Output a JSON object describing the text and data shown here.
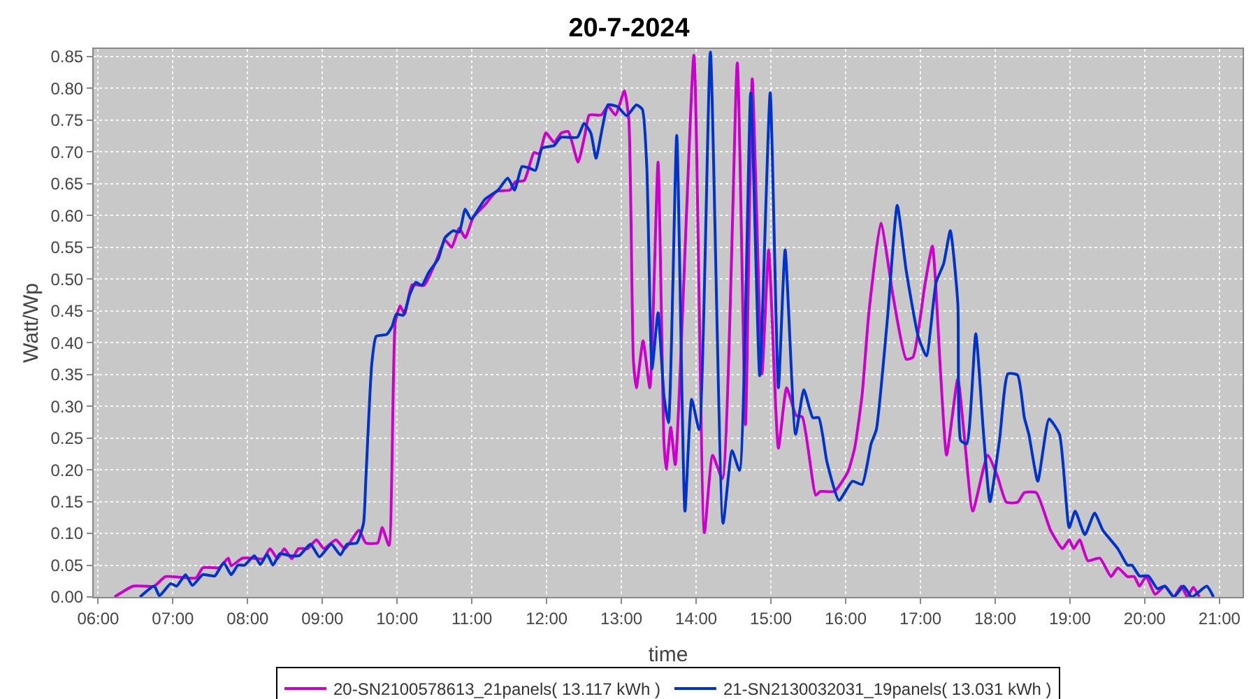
{
  "chart_data": {
    "type": "line",
    "title": "20-7-2024",
    "xlabel": "time",
    "ylabel": "Watt/Wp",
    "xlim": [
      5.94,
      21.31
    ],
    "xticks": [
      {
        "value": 6,
        "label": "06:00"
      },
      {
        "value": 7,
        "label": "07:00"
      },
      {
        "value": 8,
        "label": "08:00"
      },
      {
        "value": 9,
        "label": "09:00"
      },
      {
        "value": 10,
        "label": "10:00"
      },
      {
        "value": 11,
        "label": "11:00"
      },
      {
        "value": 12,
        "label": "12:00"
      },
      {
        "value": 13,
        "label": "13:00"
      },
      {
        "value": 14,
        "label": "14:00"
      },
      {
        "value": 15,
        "label": "15:00"
      },
      {
        "value": 16,
        "label": "16:00"
      },
      {
        "value": 17,
        "label": "17:00"
      },
      {
        "value": 18,
        "label": "18:00"
      },
      {
        "value": 19,
        "label": "19:00"
      },
      {
        "value": 20,
        "label": "20:00"
      },
      {
        "value": 21,
        "label": "21:00"
      }
    ],
    "ylim": [
      0,
      0.862
    ],
    "yticks": [
      {
        "value": 0,
        "label": "0.00"
      },
      0.05,
      {
        "value": 0.1,
        "label": "0.10"
      },
      0.15,
      {
        "value": 0.2,
        "label": "0.20"
      },
      0.25,
      {
        "value": 0.3,
        "label": "0.30"
      },
      0.35,
      {
        "value": 0.4,
        "label": "0.40"
      },
      0.45,
      {
        "value": 0.5,
        "label": "0.50"
      },
      0.55,
      {
        "value": 0.6,
        "label": "0.60"
      },
      0.65,
      {
        "value": 0.7,
        "label": "0.70"
      },
      0.75,
      {
        "value": 0.8,
        "label": "0.80"
      },
      0.85
    ],
    "grid": true,
    "legend": "bottom",
    "line_style": "solid",
    "series": [
      {
        "name": "20-SN2100578613_21panels( 13.117 kWh )",
        "color": "#cc00cc",
        "x": [
          6.22,
          6.47,
          6.75,
          6.9,
          7.31,
          7.4,
          7.62,
          7.74,
          7.78,
          7.93,
          8.06,
          8.21,
          8.3,
          8.4,
          8.49,
          8.59,
          8.68,
          8.8,
          8.92,
          9.02,
          9.18,
          9.3,
          9.49,
          9.58,
          9.74,
          9.8,
          9.89,
          9.975,
          10.04,
          10.1,
          10.2,
          10.36,
          10.52,
          10.64,
          10.73,
          10.83,
          10.91,
          11.02,
          11.17,
          11.33,
          11.51,
          11.58,
          11.7,
          11.83,
          11.9,
          11.99,
          12.1,
          12.2,
          12.29,
          12.42,
          12.51,
          12.57,
          12.73,
          12.82,
          12.92,
          13.04,
          13.1,
          13.16,
          13.2,
          13.29,
          13.38,
          13.49,
          13.57,
          13.6,
          13.66,
          13.72,
          13.97,
          14.11,
          14.22,
          14.35,
          14.55,
          14.66,
          14.75,
          14.88,
          14.97,
          15.1,
          15.21,
          15.34,
          15.42,
          15.6,
          15.66,
          15.85,
          16.03,
          16.12,
          16.22,
          16.31,
          16.47,
          16.64,
          16.81,
          16.9,
          17.06,
          17.16,
          17.27,
          17.35,
          17.5,
          17.59,
          17.7,
          17.9,
          18.03,
          18.15,
          18.3,
          18.39,
          18.55,
          18.74,
          18.9,
          18.99,
          19.05,
          19.13,
          19.24,
          19.4,
          19.55,
          19.64,
          19.77,
          19.86,
          19.93,
          20.02,
          20.14,
          20.27,
          20.39,
          20.49,
          20.57,
          20.65,
          20.73
        ],
        "values": [
          0,
          0.017,
          0.017,
          0.032,
          0.03,
          0.046,
          0.046,
          0.061,
          0.049,
          0.061,
          0.061,
          0.06,
          0.076,
          0.06,
          0.076,
          0.06,
          0.076,
          0.076,
          0.09,
          0.076,
          0.09,
          0.076,
          0.105,
          0.085,
          0.085,
          0.109,
          0.081,
          0.432,
          0.458,
          0.445,
          0.491,
          0.49,
          0.528,
          0.561,
          0.55,
          0.58,
          0.565,
          0.598,
          0.616,
          0.638,
          0.64,
          0.653,
          0.655,
          0.699,
          0.697,
          0.73,
          0.715,
          0.73,
          0.732,
          0.684,
          0.726,
          0.758,
          0.758,
          0.772,
          0.758,
          0.796,
          0.749,
          0.373,
          0.329,
          0.403,
          0.329,
          0.684,
          0.241,
          0.201,
          0.267,
          0.208,
          0.852,
          0.101,
          0.223,
          0.186,
          0.84,
          0.271,
          0.815,
          0.351,
          0.546,
          0.234,
          0.329,
          0.285,
          0.283,
          0.16,
          0.166,
          0.166,
          0.197,
          0.234,
          0.318,
          0.447,
          0.588,
          0.469,
          0.374,
          0.377,
          0.491,
          0.552,
          0.351,
          0.223,
          0.343,
          0.249,
          0.135,
          0.223,
          0.19,
          0.149,
          0.149,
          0.164,
          0.164,
          0.105,
          0.076,
          0.09,
          0.076,
          0.09,
          0.057,
          0.061,
          0.032,
          0.046,
          0.032,
          0.032,
          0.017,
          0.032,
          0.004,
          0.017,
          0,
          0.017,
          0,
          0.015,
          0
        ]
      },
      {
        "name": "21-SN2130032031_19panels( 13.031 kWh )",
        "color": "#0033cc",
        "x": [
          6.56,
          6.75,
          6.82,
          6.97,
          7.05,
          7.17,
          7.26,
          7.4,
          7.56,
          7.68,
          7.78,
          7.87,
          7.96,
          8.09,
          8.17,
          8.26,
          8.34,
          8.43,
          8.56,
          8.69,
          8.84,
          8.96,
          9.12,
          9.24,
          9.33,
          9.46,
          9.55,
          9.58,
          9.66,
          9.72,
          9.86,
          9.93,
          9.99,
          10.08,
          10.17,
          10.25,
          10.33,
          10.42,
          10.55,
          10.64,
          10.75,
          10.83,
          10.91,
          10.99,
          11.17,
          11.35,
          11.48,
          11.57,
          11.67,
          11.76,
          11.85,
          11.94,
          12.1,
          12.19,
          12.41,
          12.5,
          12.59,
          12.66,
          12.75,
          12.82,
          12.95,
          13.07,
          13.2,
          13.28,
          13.34,
          13.41,
          13.49,
          13.57,
          13.63,
          13.74,
          13.85,
          13.94,
          14.04,
          14.19,
          14.36,
          14.48,
          14.58,
          14.73,
          14.85,
          14.99,
          15.1,
          15.19,
          15.33,
          15.44,
          15.56,
          15.64,
          15.75,
          15.91,
          16.09,
          16.22,
          16.34,
          16.41,
          16.56,
          16.69,
          16.81,
          16.97,
          17.08,
          17.21,
          17.31,
          17.4,
          17.5,
          17.54,
          17.62,
          17.74,
          17.84,
          17.93,
          18.06,
          18.17,
          18.3,
          18.39,
          18.45,
          18.57,
          18.72,
          18.86,
          18.99,
          19.07,
          19.2,
          19.33,
          19.44,
          19.64,
          19.77,
          19.83,
          19.93,
          20.05,
          20.17,
          20.27,
          20.39,
          20.52,
          20.63,
          20.83,
          20.92
        ],
        "values": [
          0,
          0.017,
          0.002,
          0.021,
          0.017,
          0.035,
          0.018,
          0.035,
          0.033,
          0.054,
          0.035,
          0.05,
          0.05,
          0.065,
          0.051,
          0.067,
          0.05,
          0.068,
          0.065,
          0.065,
          0.083,
          0.063,
          0.083,
          0.066,
          0.083,
          0.085,
          0.116,
          0.182,
          0.366,
          0.41,
          0.413,
          0.425,
          0.445,
          0.443,
          0.476,
          0.495,
          0.49,
          0.51,
          0.532,
          0.565,
          0.576,
          0.574,
          0.61,
          0.594,
          0.625,
          0.64,
          0.659,
          0.64,
          0.677,
          0.675,
          0.671,
          0.706,
          0.71,
          0.723,
          0.723,
          0.745,
          0.73,
          0.69,
          0.741,
          0.774,
          0.771,
          0.757,
          0.774,
          0.767,
          0.675,
          0.359,
          0.447,
          0.315,
          0.274,
          0.726,
          0.135,
          0.311,
          0.263,
          0.857,
          0.116,
          0.23,
          0.199,
          0.793,
          0.348,
          0.793,
          0.329,
          0.546,
          0.256,
          0.326,
          0.282,
          0.282,
          0.212,
          0.152,
          0.182,
          0.177,
          0.241,
          0.263,
          0.44,
          0.616,
          0.513,
          0.41,
          0.379,
          0.495,
          0.524,
          0.576,
          0.462,
          0.246,
          0.241,
          0.414,
          0.263,
          0.15,
          0.249,
          0.351,
          0.349,
          0.282,
          0.256,
          0.182,
          0.28,
          0.256,
          0.109,
          0.135,
          0.098,
          0.132,
          0.105,
          0.076,
          0.05,
          0.05,
          0.033,
          0.033,
          0.013,
          0.017,
          0,
          0.017,
          0,
          0.017,
          0
        ]
      }
    ]
  }
}
